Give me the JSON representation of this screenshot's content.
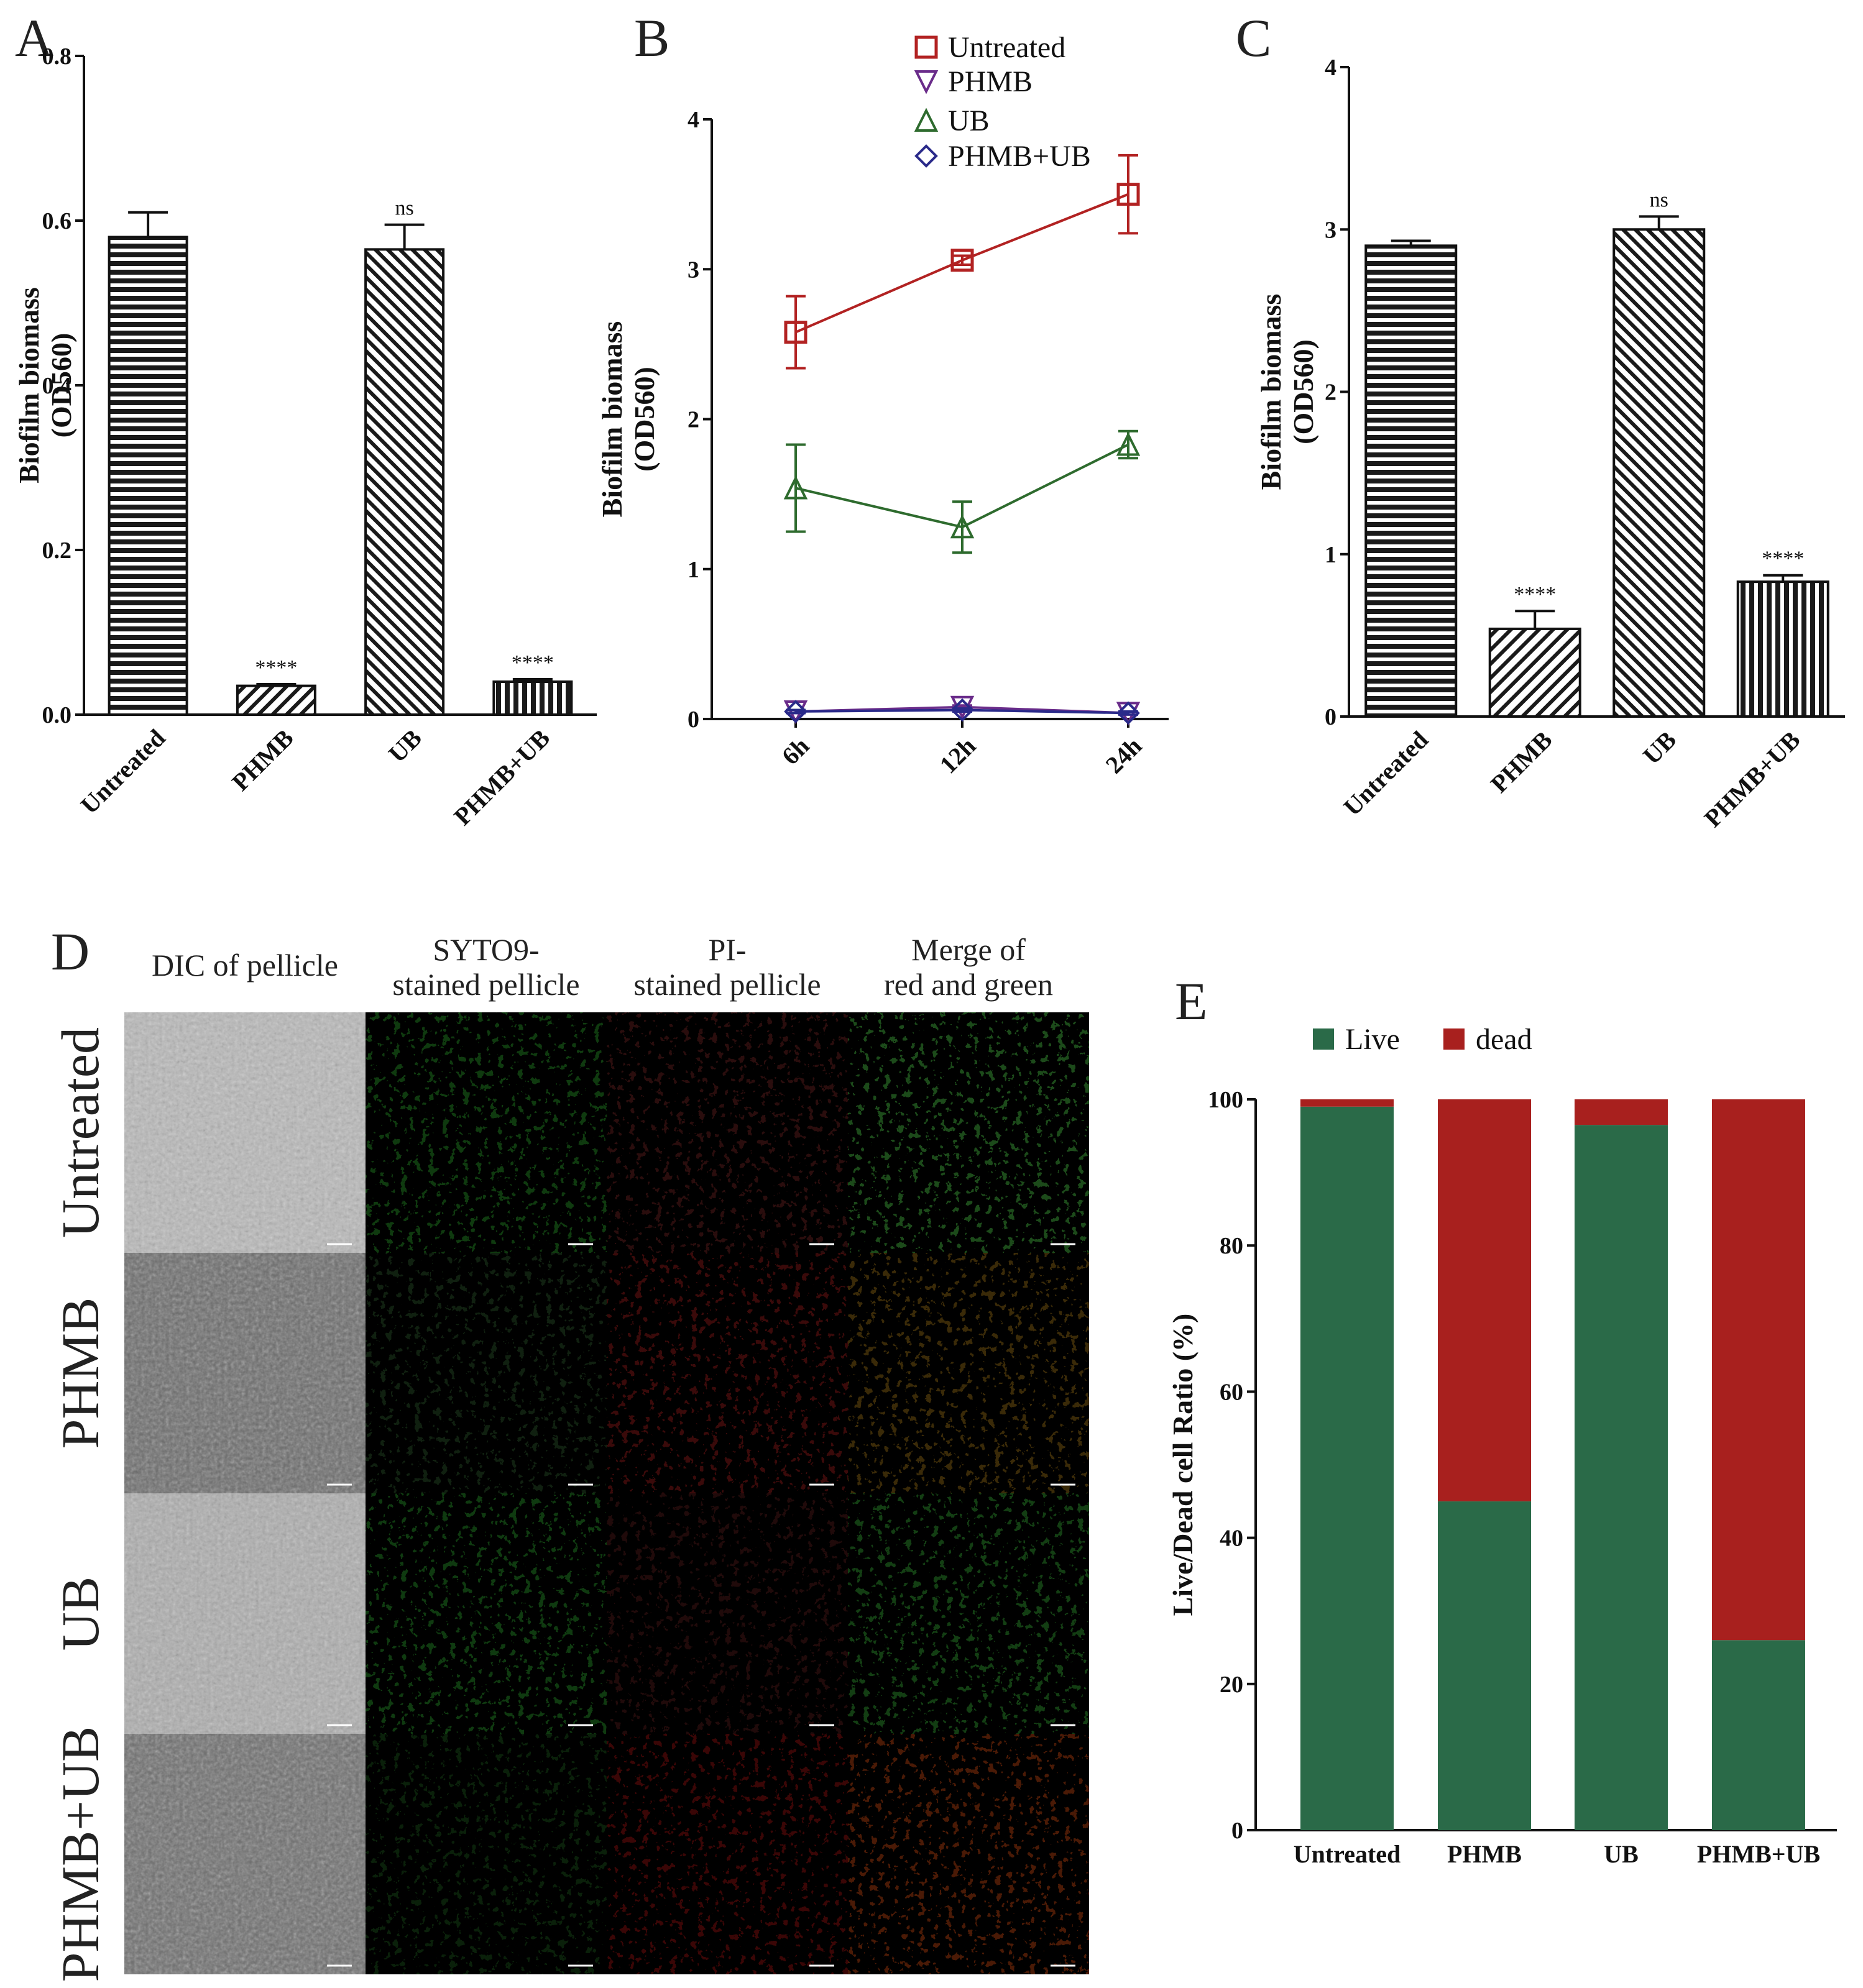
{
  "panels": {
    "a": "A",
    "b": "B",
    "c": "C",
    "d": "D",
    "e": "E"
  },
  "chart_data": [
    {
      "id": "A",
      "type": "bar",
      "categories": [
        "Untreated",
        "PHMB",
        "UB",
        "PHMB+UB"
      ],
      "values": [
        0.58,
        0.035,
        0.565,
        0.04
      ],
      "errors": [
        0.03,
        0.002,
        0.03,
        0.003
      ],
      "annotations": [
        "",
        "****",
        "ns",
        "****"
      ],
      "ylabel": "Biofilm biomass (OD560)",
      "ylabel_lines": [
        "Biofilm biomass",
        "(OD560)"
      ],
      "ylim": [
        0,
        0.8
      ],
      "yticks": [
        "0.0",
        "0.2",
        "0.4",
        "0.6",
        "0.8"
      ],
      "patterns": [
        "horizontal",
        "diagonal",
        "diagonal-dense",
        "vertical"
      ]
    },
    {
      "id": "B",
      "type": "line",
      "x": [
        "6h",
        "12h",
        "24h"
      ],
      "series": [
        {
          "name": "Untreated",
          "values": [
            2.58,
            3.06,
            3.5
          ],
          "errors": [
            0.24,
            0.03,
            0.26
          ],
          "color": "#b22222",
          "marker": "square"
        },
        {
          "name": "PHMB",
          "values": [
            0.05,
            0.08,
            0.04
          ],
          "errors": [
            0.01,
            0.01,
            0.01
          ],
          "color": "#6a2c8a",
          "marker": "triangle-down"
        },
        {
          "name": "UB",
          "values": [
            1.54,
            1.28,
            1.83
          ],
          "errors": [
            0.29,
            0.17,
            0.09
          ],
          "color": "#2e6b2e",
          "marker": "triangle-up"
        },
        {
          "name": "PHMB+UB",
          "values": [
            0.05,
            0.06,
            0.04
          ],
          "errors": [
            0.01,
            0.01,
            0.01
          ],
          "color": "#2a2a8a",
          "marker": "diamond"
        }
      ],
      "ylabel": "Biofilm biomass (OD560)",
      "ylabel_lines": [
        "Biofilm biomass",
        "(OD560)"
      ],
      "ylim": [
        0,
        4
      ],
      "yticks": [
        "0",
        "1",
        "2",
        "3",
        "4"
      ]
    },
    {
      "id": "C",
      "type": "bar",
      "categories": [
        "Untreated",
        "PHMB",
        "UB",
        "PHMB+UB"
      ],
      "values": [
        2.9,
        0.54,
        3.0,
        0.83
      ],
      "errors": [
        0.03,
        0.11,
        0.08,
        0.04
      ],
      "annotations": [
        "",
        "****",
        "ns",
        "****"
      ],
      "ylabel": "Biofilm biomass (OD560)",
      "ylabel_lines": [
        "Biofilm biomass",
        "(OD560)"
      ],
      "ylim": [
        0,
        4
      ],
      "yticks": [
        "0",
        "1",
        "2",
        "3",
        "4"
      ],
      "patterns": [
        "horizontal",
        "diagonal",
        "diagonal-dense",
        "vertical"
      ]
    },
    {
      "id": "E",
      "type": "bar",
      "stacked": true,
      "categories": [
        "Untreated",
        "PHMB",
        "UB",
        "PHMB+UB"
      ],
      "series": [
        {
          "name": "Live",
          "values": [
            99,
            45,
            96.5,
            26
          ],
          "color": "#2a6a48"
        },
        {
          "name": "dead",
          "values": [
            1,
            55,
            3.5,
            74
          ],
          "color": "#a8201e"
        }
      ],
      "ylabel": "Live/Dead cell  Ratio (%)",
      "ylim": [
        0,
        100
      ],
      "yticks": [
        "0",
        "20",
        "40",
        "60",
        "80",
        "100"
      ]
    }
  ],
  "microscopy": {
    "columns": [
      [
        "DIC of pellicle"
      ],
      [
        "SYTO9-",
        "stained pellicle"
      ],
      [
        "PI-",
        "stained pellicle"
      ],
      [
        "Merge of",
        "red and green"
      ]
    ],
    "rows": [
      "Untreated",
      "PHMB",
      "UB",
      "PHMB+UB"
    ],
    "tiles": [
      [
        {
          "kind": "dic",
          "base": "#9a9a9a",
          "alt": "#d8d8d8"
        },
        {
          "kind": "fluo",
          "base": "#0f3a0f",
          "alt": "#3cc43a"
        },
        {
          "kind": "fluo",
          "base": "#2a0d0d",
          "alt": "#c81c1c"
        },
        {
          "kind": "fluo",
          "base": "#1c4a1a",
          "alt": "#4ad43a"
        }
      ],
      [
        {
          "kind": "dic",
          "base": "#3a3a3a",
          "alt": "#9a9a9a"
        },
        {
          "kind": "fluo",
          "base": "#102010",
          "alt": "#46d23a"
        },
        {
          "kind": "fluo",
          "base": "#3a0a0a",
          "alt": "#ff2a1e"
        },
        {
          "kind": "fluo",
          "base": "#3a2a08",
          "alt": "#e8a414"
        }
      ],
      [
        {
          "kind": "dic",
          "base": "#8a8a8a",
          "alt": "#cfcfcf"
        },
        {
          "kind": "fluo",
          "base": "#0f3a10",
          "alt": "#3fc23a"
        },
        {
          "kind": "fluo",
          "base": "#200a0a",
          "alt": "#8a1a1a"
        },
        {
          "kind": "fluo",
          "base": "#133e13",
          "alt": "#44c83c"
        }
      ],
      [
        {
          "kind": "dic",
          "base": "#2a2a2a",
          "alt": "#b0b0b0"
        },
        {
          "kind": "fluo",
          "base": "#0a200a",
          "alt": "#4ad43a"
        },
        {
          "kind": "fluo",
          "base": "#3a0606",
          "alt": "#ff2c20"
        },
        {
          "kind": "fluo",
          "base": "#4a1a06",
          "alt": "#f0a020"
        }
      ]
    ]
  }
}
